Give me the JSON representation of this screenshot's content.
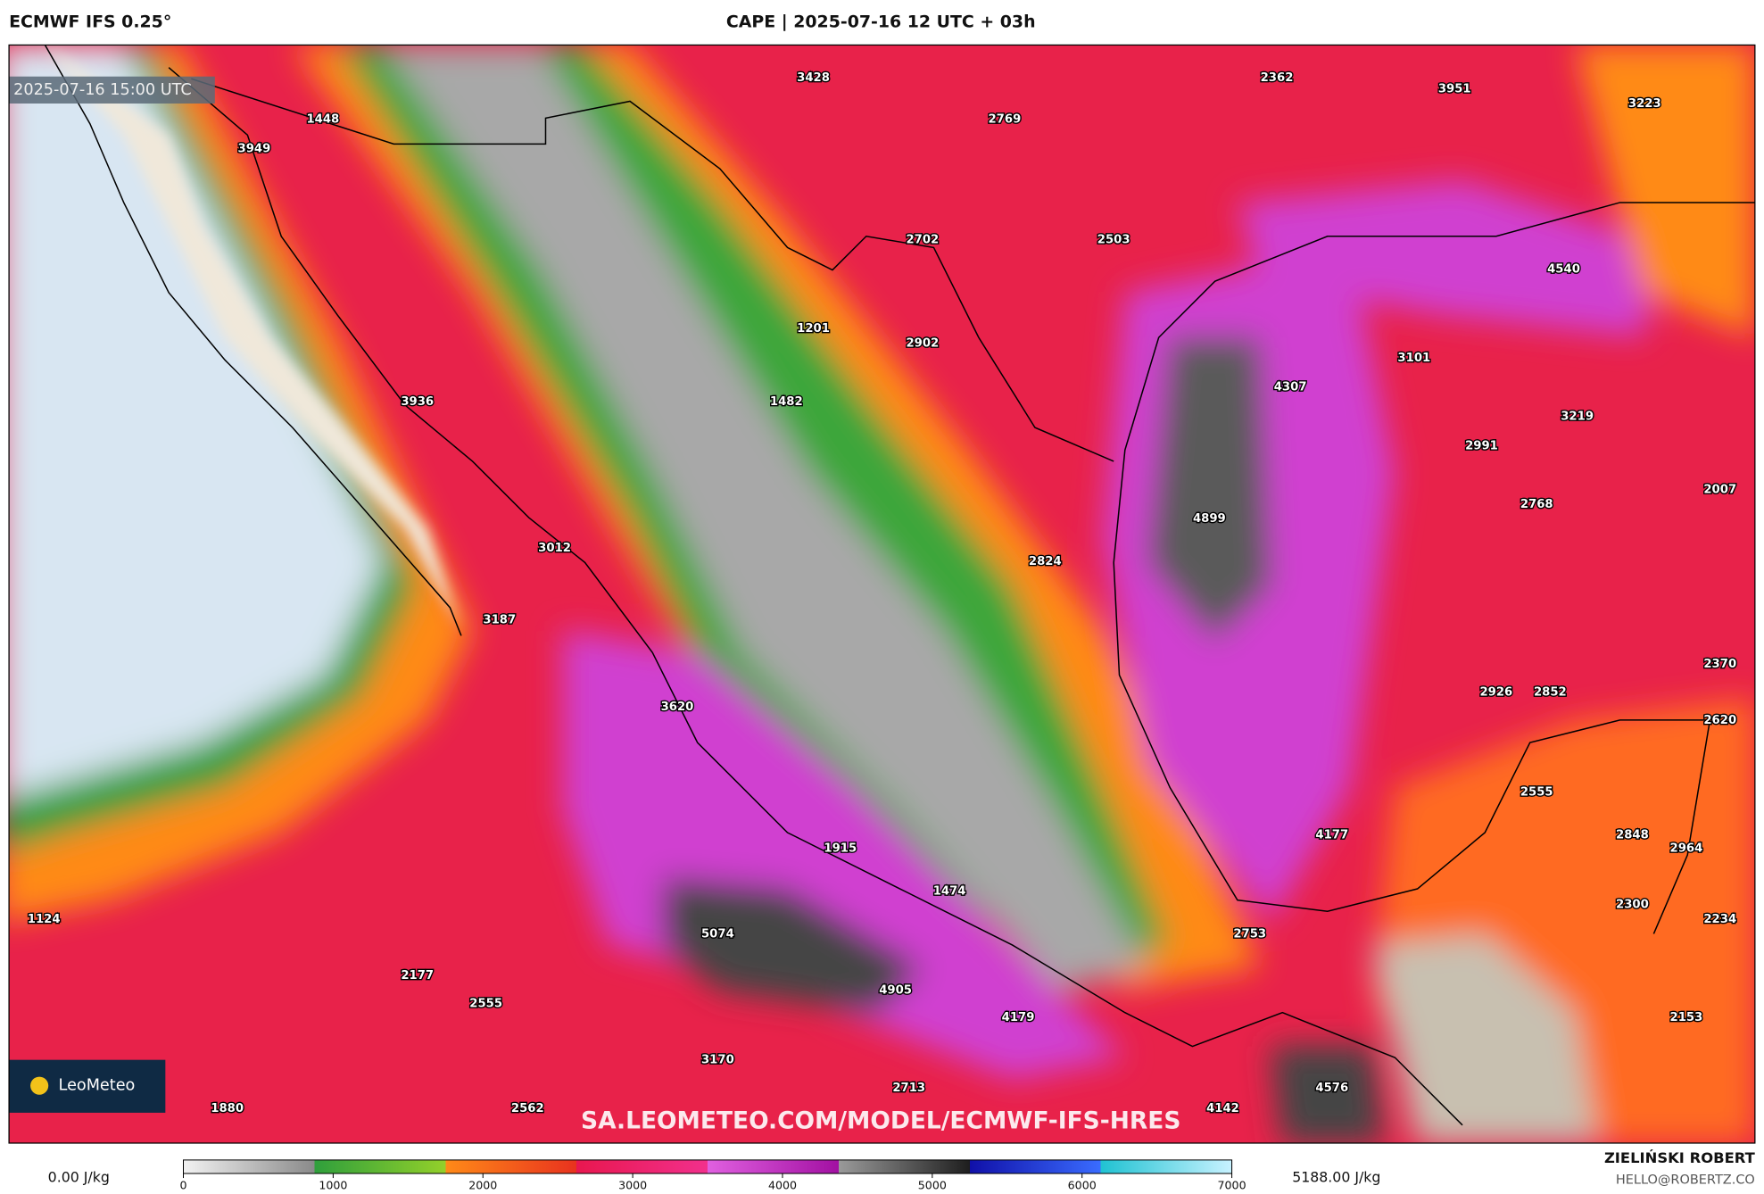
{
  "header": {
    "model": "ECMWF IFS 0.25°",
    "title": "CAPE | 2025-07-16 12 UTC + 03h"
  },
  "map": {
    "valid_time": "2025-07-16 15:00 UTC",
    "labels": [
      3428,
      2362,
      3951,
      3223,
      1448,
      2769,
      3949,
      2702,
      2503,
      4540,
      1201,
      2902,
      3101,
      4307,
      3936,
      1482,
      3219,
      2991,
      2007,
      2768,
      4899,
      3012,
      2824,
      3187,
      2370,
      2926,
      2852,
      3620,
      2620,
      2555,
      4177,
      2848,
      1915,
      2964,
      1474,
      2300,
      1124,
      2234,
      5074,
      2753,
      2177,
      2555,
      4905,
      4179,
      2153,
      3170,
      4576,
      2713,
      1880,
      2562,
      4142
    ],
    "watermark": "SA.LEOMETEO.COM/MODEL/ECMWF-IFS-HRES",
    "logo": "LeoMeteo"
  },
  "colorbar": {
    "min_label": "0.00 J/kg",
    "max_label": "5188.00 J/kg",
    "range": [
      0,
      7000
    ],
    "ticks": [
      0,
      1000,
      2000,
      3000,
      4000,
      5000,
      6000,
      7000
    ],
    "colors": [
      "#f2f2f2",
      "#8a8a8a",
      "#2f9f3c",
      "#93d02a",
      "#ff8a18",
      "#e8321e",
      "#e8174f",
      "#f2308c",
      "#e060e0",
      "#a210a2",
      "#9a9a9a",
      "#1e1e1e",
      "#1010a8",
      "#3a6cff",
      "#20c2d2",
      "#c8f2ff"
    ]
  },
  "footer": {
    "author": "ZIELIŃSKI ROBERT",
    "contact": "HELLO@ROBERTZ.CO"
  }
}
